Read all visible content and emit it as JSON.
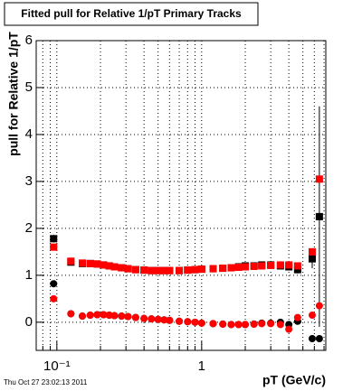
{
  "chart_data": {
    "type": "scatter",
    "title": "Fitted pull for Relative 1/pT  Primary Tracks",
    "y_label": "pull for Relative 1/pT",
    "x_label": "pT (GeV/c)",
    "footer": "Thu Oct 27 23:02:13 2011",
    "log_x": true,
    "grid": true,
    "xlim": [
      0.072,
      7.2
    ],
    "ylim": [
      -0.6,
      6
    ],
    "xticks": [
      {
        "value": 0.1,
        "label": "10⁻¹"
      },
      1
    ],
    "xminorticks": [
      0.08,
      0.09,
      0.2,
      0.3,
      0.4,
      0.5,
      0.6,
      0.7,
      0.8,
      0.9,
      2,
      3,
      4,
      5,
      6,
      7
    ],
    "yticks": [
      0,
      1,
      2,
      3,
      4,
      5,
      6
    ],
    "x": [
      0.095,
      0.125,
      0.15,
      0.17,
      0.19,
      0.21,
      0.23,
      0.25,
      0.28,
      0.31,
      0.35,
      0.4,
      0.45,
      0.5,
      0.55,
      0.6,
      0.7,
      0.8,
      0.9,
      1.0,
      1.2,
      1.4,
      1.6,
      1.8,
      2.0,
      2.3,
      2.6,
      3.0,
      3.5,
      4.0,
      4.6,
      5.8,
      6.5
    ],
    "series": [
      {
        "color": "#000000",
        "marker": "square",
        "values": [
          1.78,
          1.28,
          1.25,
          1.25,
          1.24,
          1.22,
          1.2,
          1.18,
          1.16,
          1.14,
          1.12,
          1.11,
          1.1,
          1.1,
          1.1,
          1.1,
          1.1,
          1.11,
          1.12,
          1.13,
          1.14,
          1.15,
          1.16,
          1.18,
          1.2,
          1.2,
          1.22,
          1.22,
          1.2,
          1.18,
          1.12,
          1.35,
          2.25
        ],
        "errors": [
          0.08,
          0.05,
          0.03,
          0.03,
          0.03,
          0.03,
          0.03,
          0.03,
          0.03,
          0.03,
          0.03,
          0.03,
          0.03,
          0.03,
          0.03,
          0.03,
          0.03,
          0.03,
          0.03,
          0.03,
          0.03,
          0.03,
          0.03,
          0.03,
          0.03,
          0.04,
          0.04,
          0.05,
          0.05,
          0.06,
          0.08,
          0.2,
          2.35
        ]
      },
      {
        "color": "#ff0000",
        "marker": "square",
        "values": [
          1.6,
          1.3,
          1.26,
          1.25,
          1.24,
          1.22,
          1.2,
          1.18,
          1.16,
          1.14,
          1.12,
          1.11,
          1.1,
          1.1,
          1.1,
          1.1,
          1.1,
          1.11,
          1.12,
          1.13,
          1.14,
          1.15,
          1.16,
          1.17,
          1.18,
          1.19,
          1.2,
          1.21,
          1.22,
          1.22,
          1.2,
          1.5,
          3.05
        ]
      },
      {
        "color": "#000000",
        "marker": "circle",
        "values": [
          0.82,
          0.18,
          0.13,
          0.15,
          0.16,
          0.16,
          0.15,
          0.14,
          0.13,
          0.12,
          0.1,
          0.08,
          0.07,
          0.06,
          0.05,
          0.04,
          0.02,
          0.01,
          0,
          -0.02,
          -0.03,
          -0.04,
          -0.05,
          -0.05,
          -0.05,
          -0.04,
          -0.02,
          -0.02,
          0,
          -0.05,
          0.02,
          -0.35,
          -0.35
        ]
      },
      {
        "color": "#ff0000",
        "marker": "circle",
        "values": [
          0.5,
          0.18,
          0.13,
          0.15,
          0.16,
          0.16,
          0.15,
          0.14,
          0.13,
          0.12,
          0.1,
          0.08,
          0.07,
          0.06,
          0.05,
          0.04,
          0.02,
          0.01,
          0,
          -0.02,
          -0.03,
          -0.04,
          -0.05,
          -0.05,
          -0.05,
          -0.04,
          -0.03,
          -0.03,
          -0.05,
          -0.15,
          0.1,
          0.15,
          0.35
        ]
      }
    ]
  }
}
